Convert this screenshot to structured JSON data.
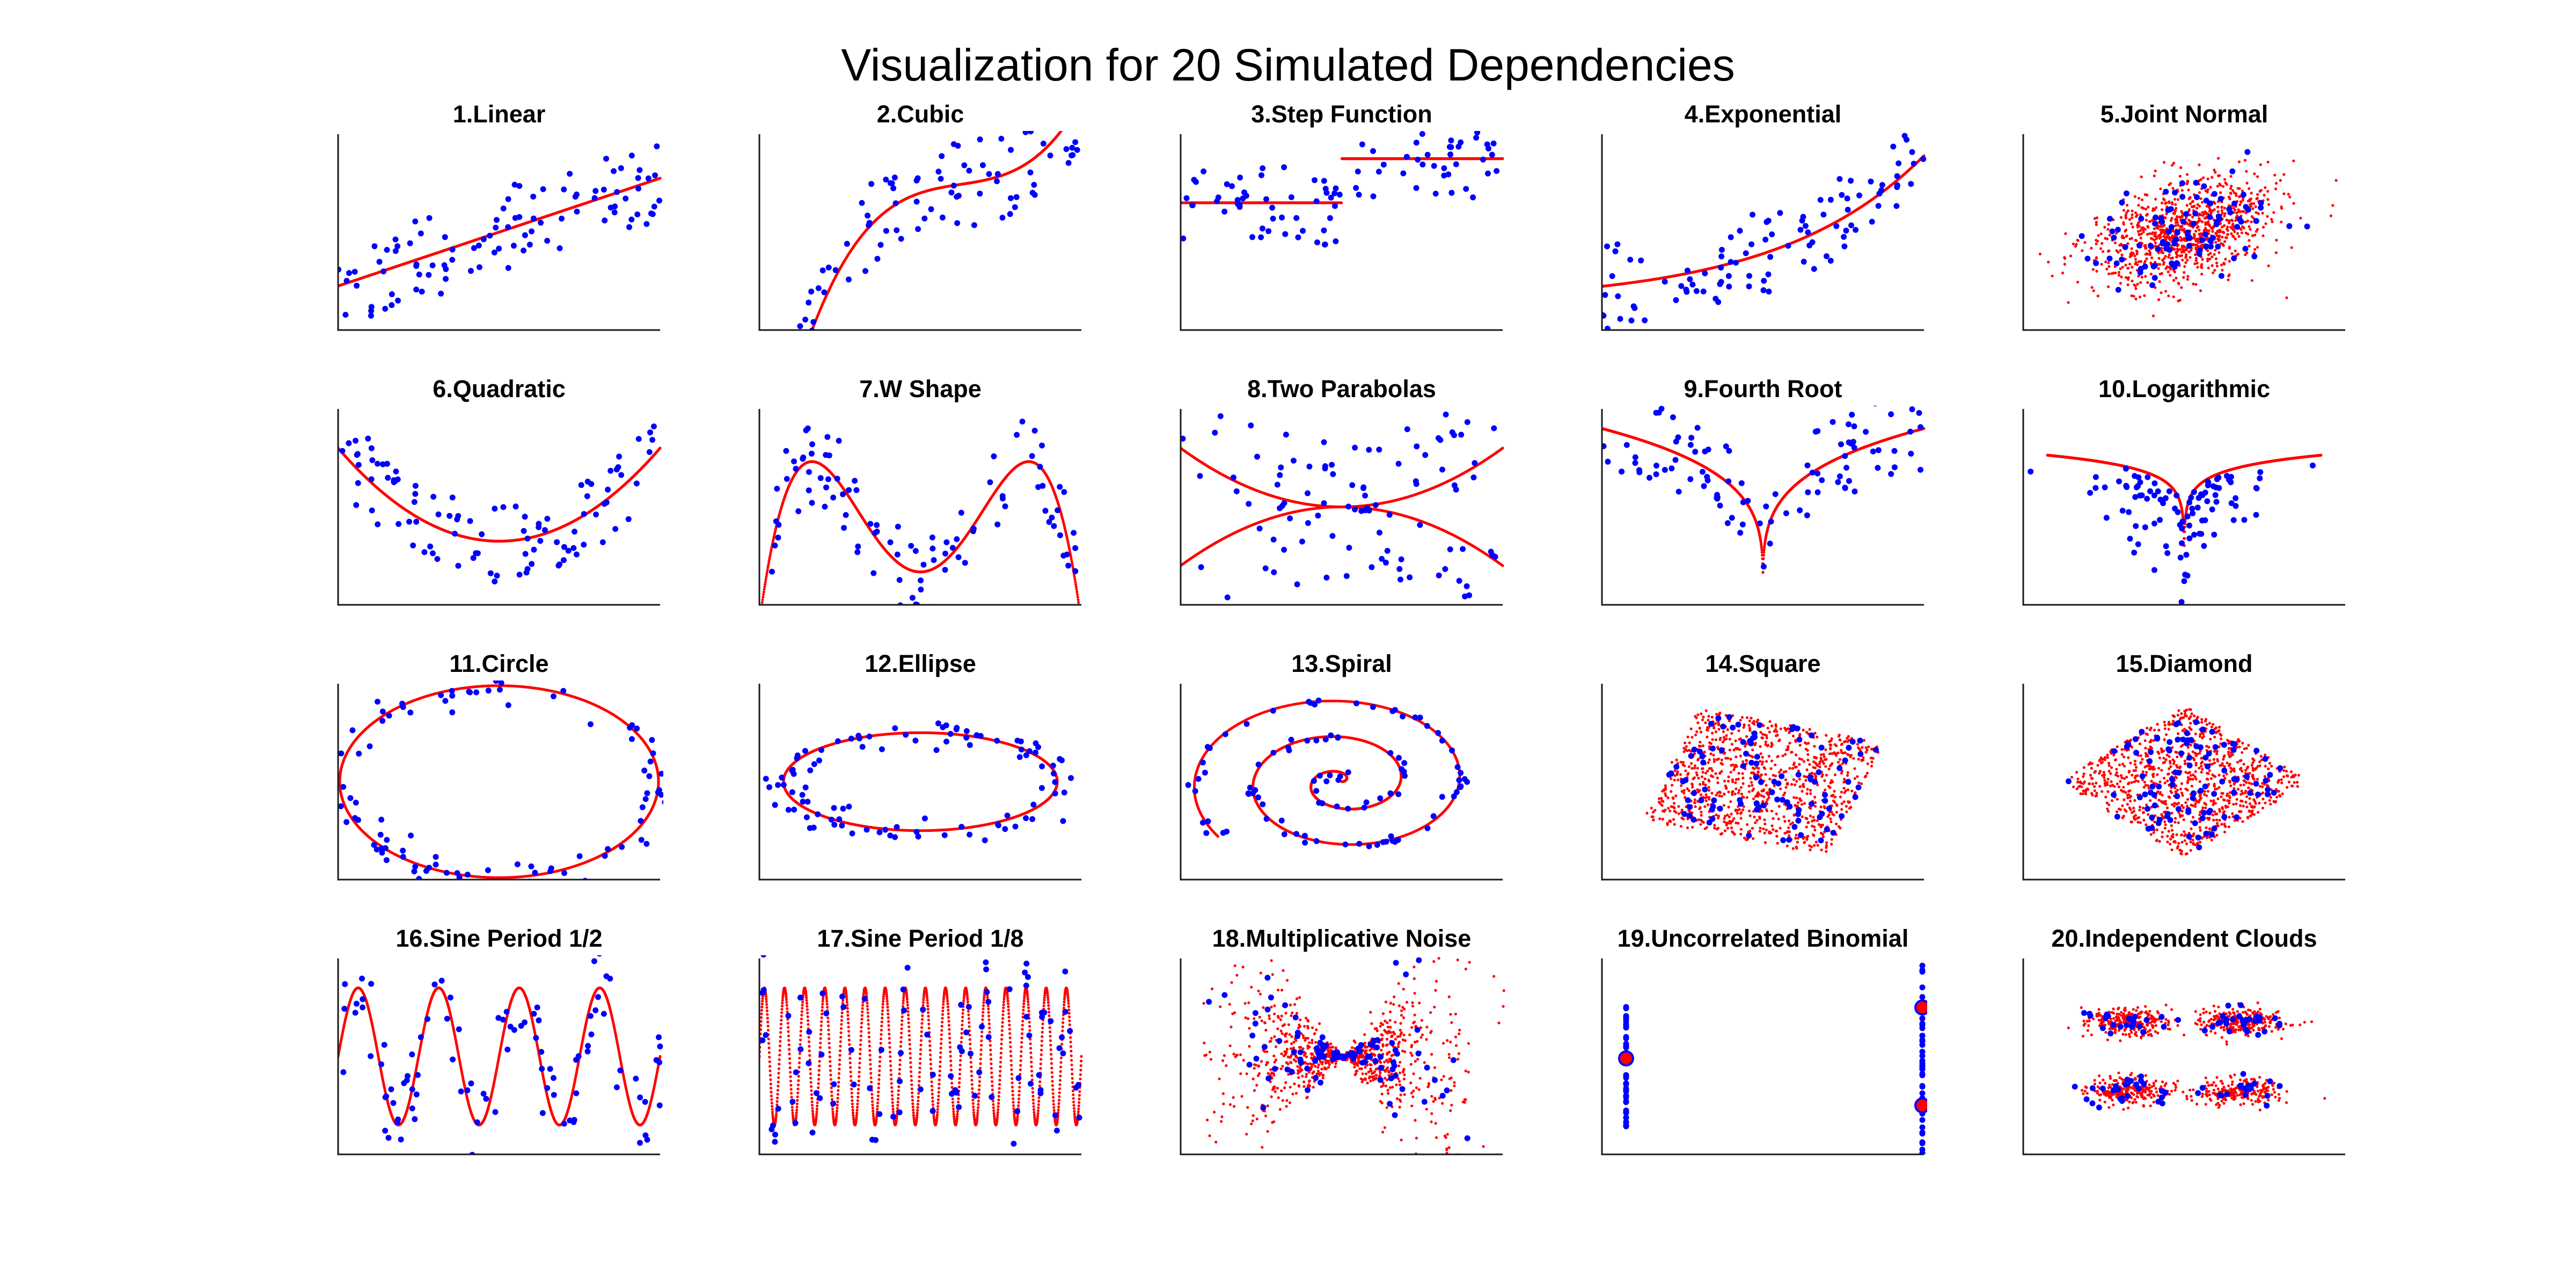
{
  "figure": {
    "title": "Visualization for 20 Simulated Dependencies",
    "colors": {
      "samples": "#0000ff",
      "curve": "#ff0000",
      "axes": "#1a1a1a"
    },
    "grid": false,
    "legend": "none"
  },
  "chart_data": [
    {
      "id": 1,
      "title": "1.Linear",
      "type": "scatter",
      "xlim": [
        -1,
        1
      ],
      "ylim": [
        -1,
        1
      ],
      "generator": {
        "kind": "function",
        "fn": "linear",
        "noise": 0.55,
        "n": 100,
        "ref_n": 800
      }
    },
    {
      "id": 2,
      "title": "2.Cubic",
      "type": "scatter",
      "xlim": [
        -1,
        1
      ],
      "ylim": [
        -1,
        1
      ],
      "generator": {
        "kind": "function",
        "fn": "cubic",
        "noise": 0.55,
        "n": 100,
        "ref_n": 800
      }
    },
    {
      "id": 3,
      "title": "3.Step Function",
      "type": "scatter",
      "xlim": [
        -1,
        1
      ],
      "ylim": [
        -1,
        1
      ],
      "generator": {
        "kind": "function",
        "fn": "step",
        "noise": 0.55,
        "n": 100,
        "ref_n": 800
      }
    },
    {
      "id": 4,
      "title": "4.Exponential",
      "type": "scatter",
      "xlim": [
        -1,
        1
      ],
      "ylim": [
        -1,
        1
      ],
      "generator": {
        "kind": "function",
        "fn": "exponential",
        "noise": 0.55,
        "n": 100,
        "ref_n": 800
      }
    },
    {
      "id": 5,
      "title": "5.Joint Normal",
      "type": "scatter",
      "xlim": [
        -1,
        1
      ],
      "ylim": [
        -1,
        1
      ],
      "generator": {
        "kind": "joint_normal",
        "rho": 0.4,
        "sd": 0.28,
        "n": 100,
        "ref_n": 1000
      }
    },
    {
      "id": 6,
      "title": "6.Quadratic",
      "type": "scatter",
      "xlim": [
        -1,
        1
      ],
      "ylim": [
        -1,
        1
      ],
      "generator": {
        "kind": "function",
        "fn": "quadratic",
        "noise": 0.55,
        "n": 100,
        "ref_n": 800
      }
    },
    {
      "id": 7,
      "title": "7.W Shape",
      "type": "scatter",
      "xlim": [
        -1,
        1
      ],
      "ylim": [
        -1,
        1
      ],
      "generator": {
        "kind": "function",
        "fn": "wshape",
        "noise": 0.55,
        "n": 100,
        "ref_n": 800
      }
    },
    {
      "id": 8,
      "title": "8.Two Parabolas",
      "type": "scatter",
      "xlim": [
        -1,
        1
      ],
      "ylim": [
        -1,
        1
      ],
      "generator": {
        "kind": "two_parabolas",
        "noise": 0.7,
        "n": 100,
        "ref_n": 800
      }
    },
    {
      "id": 9,
      "title": "9.Fourth Root",
      "type": "scatter",
      "xlim": [
        -1,
        1
      ],
      "ylim": [
        -1,
        1
      ],
      "generator": {
        "kind": "function",
        "fn": "fourthroot",
        "noise": 0.55,
        "n": 100,
        "ref_n": 1500
      }
    },
    {
      "id": 10,
      "title": "10.Logarithmic",
      "type": "scatter",
      "xlim": [
        -1,
        1
      ],
      "ylim": [
        -1,
        1
      ],
      "generator": {
        "kind": "logarithmic",
        "noise": 0.35,
        "n": 100,
        "ref_n": 1500
      }
    },
    {
      "id": 11,
      "title": "11.Circle",
      "type": "scatter",
      "xlim": [
        -1,
        1
      ],
      "ylim": [
        -1,
        1
      ],
      "generator": {
        "kind": "ellipse",
        "a": 0.99,
        "b": 0.98,
        "noise": 0.12,
        "n": 100,
        "ref_n": 800
      }
    },
    {
      "id": 12,
      "title": "12.Ellipse",
      "type": "scatter",
      "xlim": [
        -1,
        1
      ],
      "ylim": [
        -1,
        1
      ],
      "generator": {
        "kind": "ellipse",
        "a": 0.85,
        "b": 0.5,
        "noise": 0.12,
        "n": 100,
        "ref_n": 800
      }
    },
    {
      "id": 13,
      "title": "13.Spiral",
      "type": "scatter",
      "xlim": [
        -1,
        1
      ],
      "ylim": [
        -1,
        1
      ],
      "generator": {
        "kind": "spiral",
        "turns": 2.6,
        "noise": 0.03,
        "n": 100,
        "ref_n": 1200
      }
    },
    {
      "id": 14,
      "title": "14.Square",
      "type": "scatter",
      "xlim": [
        -1,
        1
      ],
      "ylim": [
        -1,
        1
      ],
      "generator": {
        "kind": "rotated_square",
        "angle_deg": -17,
        "half_width": 0.6,
        "n": 100,
        "ref_n": 1000
      }
    },
    {
      "id": 15,
      "title": "15.Diamond",
      "type": "scatter",
      "xlim": [
        -1,
        1
      ],
      "ylim": [
        -1,
        1
      ],
      "generator": {
        "kind": "rotated_square",
        "angle_deg": 45,
        "half_width": 0.55,
        "n": 100,
        "ref_n": 1000
      }
    },
    {
      "id": 16,
      "title": "16.Sine Period 1/2",
      "type": "scatter",
      "xlim": [
        -1,
        1
      ],
      "ylim": [
        -1,
        1
      ],
      "generator": {
        "kind": "function",
        "fn": "sine4",
        "noise": 0.6,
        "n": 100,
        "ref_n": 1000
      }
    },
    {
      "id": 17,
      "title": "17.Sine Period 1/8",
      "type": "scatter",
      "xlim": [
        -1,
        1
      ],
      "ylim": [
        -1,
        1
      ],
      "generator": {
        "kind": "function",
        "fn": "sine16",
        "noise": 0.6,
        "n": 100,
        "ref_n": 1500
      }
    },
    {
      "id": 18,
      "title": "18.Multiplicative Noise",
      "type": "scatter",
      "xlim": [
        -1,
        1
      ],
      "ylim": [
        -1,
        1
      ],
      "generator": {
        "kind": "multiplicative",
        "n": 100,
        "ref_n": 1000
      }
    },
    {
      "id": 19,
      "title": "19.Uncorrelated Binomial",
      "type": "scatter",
      "xlim": [
        -1,
        1
      ],
      "ylim": [
        -1,
        1
      ],
      "generator": {
        "kind": "binomial",
        "columns": [
          {
            "x": -0.85,
            "y_range": [
              -0.75,
              0.55
            ]
          },
          {
            "x": 0.99,
            "y_range": [
              -1.0,
              0.95
            ]
          }
        ],
        "big_points": [
          [
            -0.85,
            -0.02
          ],
          [
            0.99,
            0.5
          ],
          [
            0.99,
            -0.5
          ]
        ],
        "n": 100
      }
    },
    {
      "id": 20,
      "title": "20.Independent Clouds",
      "type": "scatter",
      "xlim": [
        -1,
        1
      ],
      "ylim": [
        -1,
        1
      ],
      "generator": {
        "kind": "clouds",
        "centers": [
          [
            -0.35,
            0.35
          ],
          [
            0.35,
            0.35
          ],
          [
            -0.35,
            -0.35
          ],
          [
            0.35,
            -0.35
          ]
        ],
        "sd": [
          0.13,
          0.07
        ],
        "n": 100,
        "ref_n": 1000
      }
    }
  ]
}
